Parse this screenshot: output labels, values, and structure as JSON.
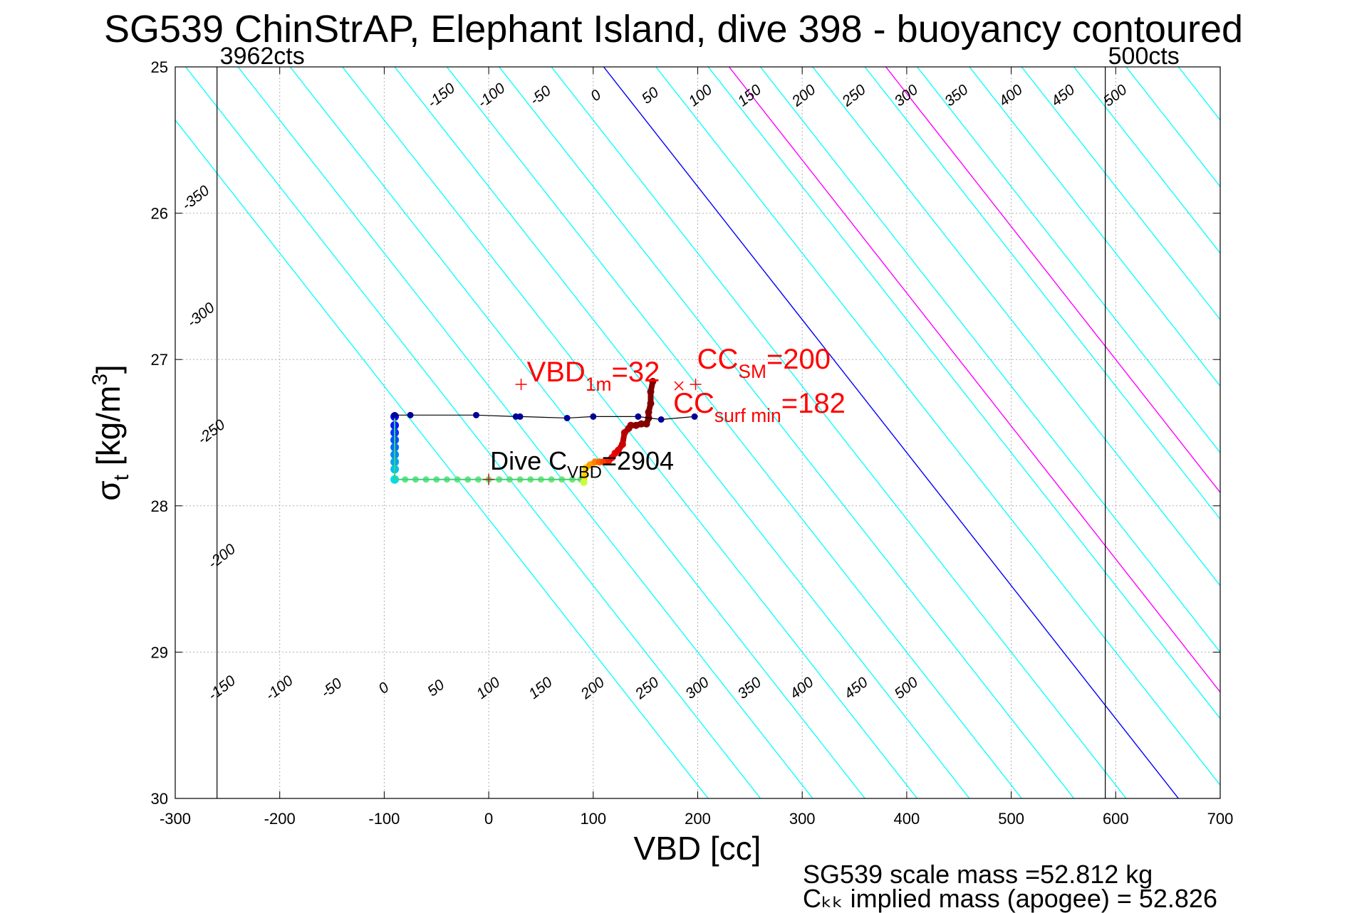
{
  "title": "SG539 ChinStrAP, Elephant Island, dive 398 - buoyancy contoured",
  "footer": {
    "line1": "SG539 scale mass =52.812 kg",
    "line2": "Cₖₖ implied mass (apogee) = 52.826"
  },
  "chart_data": {
    "type": "scatter",
    "title": "SG539 ChinStrAP, Elephant Island, dive 398 - buoyancy contoured",
    "xlabel": "VBD [cc]",
    "ylabel": "σt [kg/m3]",
    "ylabel_parts": {
      "sym": "σ",
      "sub": "t",
      "main": " [kg/m",
      "sup": "3",
      "end": "]"
    },
    "xlim": [
      -300,
      700
    ],
    "ylim": [
      25,
      30
    ],
    "y_reversed": true,
    "xticks": [
      -300,
      -200,
      -100,
      0,
      100,
      200,
      300,
      400,
      500,
      600,
      700
    ],
    "yticks": [
      25,
      26,
      27,
      28,
      29,
      30
    ],
    "grid": true,
    "contour_slope_cc_per_sigma": 110,
    "contours": {
      "top_anchor_sigma": 25.2,
      "bottom_anchor_sigma": 29.25,
      "cyan_values": [
        -450,
        -400,
        -350,
        -300,
        -250,
        -200,
        -150,
        -100,
        -50,
        50,
        100,
        150,
        200,
        250,
        300,
        350,
        400,
        450,
        500,
        550,
        600,
        650,
        700
      ],
      "zero_contour_x_at_top": 110,
      "magenta_contours_x_at_top": [
        230,
        380
      ],
      "top_labels": [
        {
          "value": "-150",
          "x": -45
        },
        {
          "value": "-100",
          "x": 3
        },
        {
          "value": "-50",
          "x": 50
        },
        {
          "value": "0",
          "x": 103
        },
        {
          "value": "50",
          "x": 155
        },
        {
          "value": "100",
          "x": 203
        },
        {
          "value": "150",
          "x": 250
        },
        {
          "value": "200",
          "x": 302
        },
        {
          "value": "250",
          "x": 350
        },
        {
          "value": "300",
          "x": 400
        },
        {
          "value": "350",
          "x": 448
        },
        {
          "value": "400",
          "x": 500
        },
        {
          "value": "450",
          "x": 550
        },
        {
          "value": "500",
          "x": 600
        }
      ],
      "left_labels": [
        {
          "value": "-350",
          "x": -280,
          "y": 25.9
        },
        {
          "value": "-300",
          "x": -275,
          "y": 26.7
        },
        {
          "value": "-250",
          "x": -265,
          "y": 27.5
        },
        {
          "value": "-200",
          "x": -255,
          "y": 28.35
        }
      ],
      "bottom_labels": [
        {
          "value": "-150",
          "x": -255
        },
        {
          "value": "-100",
          "x": -200
        },
        {
          "value": "-50",
          "x": -150
        },
        {
          "value": "0",
          "x": -100
        },
        {
          "value": "50",
          "x": -50
        },
        {
          "value": "100",
          "x": 0
        },
        {
          "value": "150",
          "x": 50
        },
        {
          "value": "200",
          "x": 100
        },
        {
          "value": "250",
          "x": 152
        },
        {
          "value": "300",
          "x": 200
        },
        {
          "value": "350",
          "x": 250
        },
        {
          "value": "400",
          "x": 300
        },
        {
          "value": "450",
          "x": 352
        },
        {
          "value": "500",
          "x": 400
        }
      ]
    },
    "vertical_lines": [
      {
        "x": -260,
        "label": "3962cts"
      },
      {
        "x": 590,
        "label": "500cts"
      }
    ],
    "dive_path": {
      "x": [
        -90,
        -90,
        -90,
        -90,
        -90,
        -90,
        -90,
        -90,
        -90,
        -80,
        -70,
        -60,
        -50,
        -40,
        -30,
        -20,
        -10,
        0,
        10,
        20,
        30,
        40,
        50,
        60,
        70,
        80,
        88,
        91
      ],
      "y": [
        27.39,
        27.45,
        27.5,
        27.55,
        27.6,
        27.65,
        27.7,
        27.75,
        27.82,
        27.82,
        27.82,
        27.82,
        27.82,
        27.82,
        27.82,
        27.82,
        27.82,
        27.82,
        27.82,
        27.82,
        27.82,
        27.82,
        27.82,
        27.82,
        27.82,
        27.82,
        27.82,
        27.82
      ]
    },
    "climb_path": {
      "x": [
        91,
        93,
        97,
        102,
        106,
        110,
        115,
        118,
        121,
        124,
        128,
        130,
        134,
        136,
        141,
        146,
        151,
        153,
        153,
        155,
        155,
        157
      ],
      "y": [
        27.84,
        27.74,
        27.72,
        27.7,
        27.7,
        27.7,
        27.69,
        27.67,
        27.64,
        27.62,
        27.58,
        27.5,
        27.47,
        27.45,
        27.45,
        27.44,
        27.44,
        27.4,
        27.36,
        27.3,
        27.22,
        27.15
      ]
    },
    "surface_path": {
      "x": [
        -90,
        -75,
        -12,
        26,
        30,
        75,
        100,
        143,
        165,
        197
      ],
      "y": [
        27.38,
        27.38,
        27.38,
        27.39,
        27.39,
        27.4,
        27.39,
        27.39,
        27.41,
        27.39
      ]
    },
    "markers": [
      {
        "symbol": "+",
        "x": 31,
        "y": 27.17,
        "label": "VBD",
        "sub": "1m",
        "value": "=32"
      },
      {
        "symbol": "x",
        "x": 182,
        "y": 27.18,
        "label": "CC",
        "sub": "surf min",
        "value": "=182"
      },
      {
        "symbol": "+",
        "x": 198,
        "y": 27.17,
        "label": "CC",
        "sub": "SM",
        "value": "=200"
      },
      {
        "symbol": "+",
        "x": 0,
        "y": 27.82,
        "label": "Dive C",
        "sub": "VBD",
        "value": "=2904"
      }
    ],
    "colors": {
      "contour": "#00ffff",
      "zero_contour": "#0000ff",
      "magenta_contour": "#ff00ff",
      "surface_dots": "#000099",
      "surface_line": "#000000",
      "marker_label": "#ff0000",
      "dive_label": "#000000",
      "frame": "#000000",
      "grid": "#b0b0b0"
    }
  }
}
